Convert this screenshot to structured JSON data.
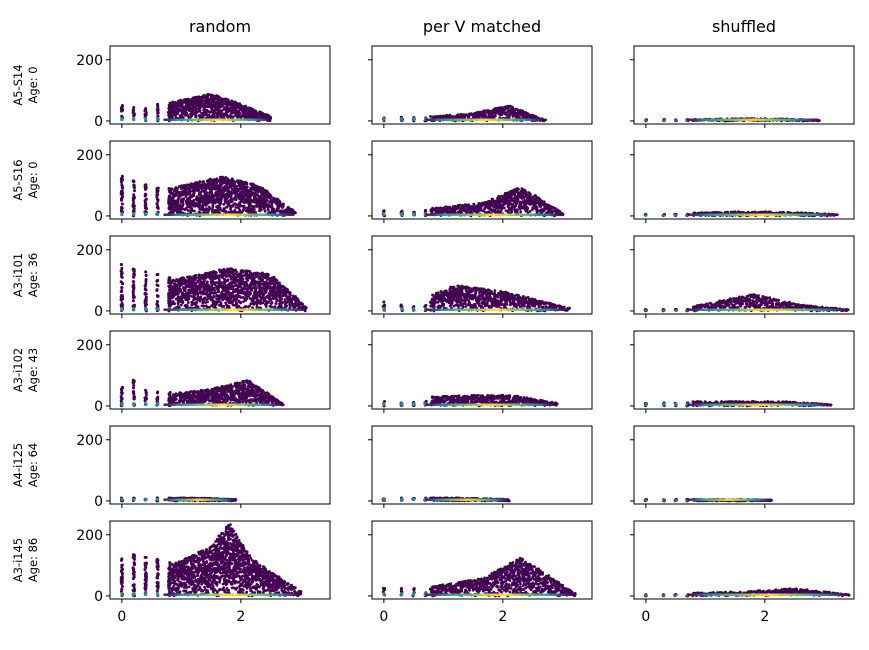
{
  "chart_data": {
    "type": "scatter",
    "layout": "6x3 grid, shared axes",
    "columns": [
      "random",
      "per V matched",
      "shuffled"
    ],
    "rows": [
      {
        "id": "A5-S14",
        "age": "Age: 0"
      },
      {
        "id": "A5-S16",
        "age": "Age: 0"
      },
      {
        "id": "A3-i101",
        "age": "Age: 36"
      },
      {
        "id": "A3-i102",
        "age": "Age: 43"
      },
      {
        "id": "A4-i125",
        "age": "Age: 64"
      },
      {
        "id": "A3-i145",
        "age": "Age: 86"
      }
    ],
    "xlim": [
      -0.2,
      3.5
    ],
    "ylim": [
      -10,
      245
    ],
    "xticks": [
      0,
      2
    ],
    "yticks": [
      0,
      200
    ],
    "colormap": "viridis",
    "grid": false,
    "legend": "none",
    "panel_shapes": [
      [
        {
          "x_stripes": [
            0,
            0.2,
            0.4,
            0.6,
            0.8
          ],
          "stripe_ymax": [
            55,
            45,
            50,
            55,
            60
          ],
          "cloud_xmax": 2.5,
          "envelope": [
            [
              0.8,
              60
            ],
            [
              1.5,
              90
            ],
            [
              2.0,
              55
            ],
            [
              2.5,
              15
            ]
          ]
        },
        {
          "x_stripes": [
            0,
            0.3,
            0.5,
            0.7
          ],
          "stripe_ymax": [
            12,
            12,
            12,
            12
          ],
          "cloud_xmax": 2.7,
          "envelope": [
            [
              0.8,
              15
            ],
            [
              1.5,
              25
            ],
            [
              2.1,
              50
            ],
            [
              2.7,
              5
            ]
          ]
        },
        {
          "x_stripes": [
            0,
            0.3,
            0.5,
            0.7
          ],
          "stripe_ymax": [
            5,
            5,
            5,
            5
          ],
          "cloud_xmax": 2.9,
          "envelope": [
            [
              0.8,
              5
            ],
            [
              1.5,
              8
            ],
            [
              2.2,
              8
            ],
            [
              2.9,
              3
            ]
          ]
        }
      ],
      [
        {
          "x_stripes": [
            0,
            0.2,
            0.4,
            0.6,
            0.8
          ],
          "stripe_ymax": [
            130,
            115,
            105,
            100,
            90
          ],
          "cloud_xmax": 2.9,
          "envelope": [
            [
              0.8,
              90
            ],
            [
              1.7,
              130
            ],
            [
              2.3,
              100
            ],
            [
              2.9,
              15
            ]
          ]
        },
        {
          "x_stripes": [
            0,
            0.3,
            0.5,
            0.7
          ],
          "stripe_ymax": [
            20,
            20,
            20,
            20
          ],
          "cloud_xmax": 3.0,
          "envelope": [
            [
              0.8,
              25
            ],
            [
              1.7,
              45
            ],
            [
              2.3,
              95
            ],
            [
              3.0,
              10
            ]
          ]
        },
        {
          "x_stripes": [
            0,
            0.3,
            0.5,
            0.7
          ],
          "stripe_ymax": [
            5,
            5,
            5,
            5
          ],
          "cloud_xmax": 3.2,
          "envelope": [
            [
              0.8,
              10
            ],
            [
              1.7,
              15
            ],
            [
              2.5,
              12
            ],
            [
              3.2,
              5
            ]
          ]
        }
      ],
      [
        {
          "x_stripes": [
            0,
            0.2,
            0.4,
            0.6,
            0.8
          ],
          "stripe_ymax": [
            155,
            140,
            130,
            120,
            110
          ],
          "cloud_xmax": 3.1,
          "envelope": [
            [
              0.8,
              100
            ],
            [
              1.8,
              140
            ],
            [
              2.5,
              120
            ],
            [
              3.1,
              15
            ]
          ]
        },
        {
          "x_stripes": [
            0,
            0.3,
            0.5,
            0.7
          ],
          "stripe_ymax": [
            30,
            20,
            20,
            20
          ],
          "cloud_xmax": 3.1,
          "envelope": [
            [
              0.8,
              50
            ],
            [
              1.2,
              85
            ],
            [
              2.1,
              60
            ],
            [
              3.1,
              10
            ]
          ]
        },
        {
          "x_stripes": [
            0,
            0.3,
            0.5,
            0.7
          ],
          "stripe_ymax": [
            5,
            5,
            5,
            5
          ],
          "cloud_xmax": 3.4,
          "envelope": [
            [
              0.8,
              15
            ],
            [
              1.8,
              55
            ],
            [
              2.6,
              20
            ],
            [
              3.4,
              5
            ]
          ]
        }
      ],
      [
        {
          "x_stripes": [
            0,
            0.2,
            0.4,
            0.6,
            0.8
          ],
          "stripe_ymax": [
            70,
            90,
            55,
            50,
            45
          ],
          "cloud_xmax": 2.7,
          "envelope": [
            [
              0.8,
              40
            ],
            [
              1.5,
              55
            ],
            [
              2.1,
              85
            ],
            [
              2.7,
              10
            ]
          ]
        },
        {
          "x_stripes": [
            0,
            0.3,
            0.5,
            0.7
          ],
          "stripe_ymax": [
            15,
            15,
            15,
            15
          ],
          "cloud_xmax": 2.9,
          "envelope": [
            [
              0.8,
              30
            ],
            [
              1.5,
              35
            ],
            [
              2.2,
              35
            ],
            [
              2.9,
              10
            ]
          ]
        },
        {
          "x_stripes": [
            0,
            0.3,
            0.5,
            0.7
          ],
          "stripe_ymax": [
            10,
            10,
            10,
            10
          ],
          "cloud_xmax": 3.1,
          "envelope": [
            [
              0.8,
              15
            ],
            [
              1.5,
              15
            ],
            [
              2.3,
              15
            ],
            [
              3.1,
              5
            ]
          ]
        }
      ],
      [
        {
          "x_stripes": [
            0,
            0.2,
            0.4,
            0.6,
            0.8
          ],
          "stripe_ymax": [
            10,
            10,
            10,
            10,
            10
          ],
          "cloud_xmax": 1.9,
          "envelope": [
            [
              0.8,
              10
            ],
            [
              1.2,
              10
            ],
            [
              1.6,
              8
            ],
            [
              1.9,
              5
            ]
          ]
        },
        {
          "x_stripes": [
            0,
            0.3,
            0.5,
            0.7
          ],
          "stripe_ymax": [
            10,
            10,
            10,
            10
          ],
          "cloud_xmax": 2.1,
          "envelope": [
            [
              0.8,
              10
            ],
            [
              1.2,
              10
            ],
            [
              1.7,
              8
            ],
            [
              2.1,
              5
            ]
          ]
        },
        {
          "x_stripes": [
            0,
            0.3,
            0.5,
            0.7
          ],
          "stripe_ymax": [
            5,
            5,
            5,
            5
          ],
          "cloud_xmax": 2.1,
          "envelope": [
            [
              0.8,
              5
            ],
            [
              1.2,
              5
            ],
            [
              1.7,
              5
            ],
            [
              2.1,
              3
            ]
          ]
        }
      ],
      [
        {
          "x_stripes": [
            0,
            0.2,
            0.4,
            0.6,
            0.8
          ],
          "stripe_ymax": [
            125,
            140,
            130,
            120,
            110
          ],
          "cloud_xmax": 3.0,
          "envelope": [
            [
              0.8,
              100
            ],
            [
              1.5,
              160
            ],
            [
              1.8,
              235
            ],
            [
              2.2,
              120
            ],
            [
              3.0,
              15
            ]
          ]
        },
        {
          "x_stripes": [
            0,
            0.3,
            0.5,
            0.7
          ],
          "stripe_ymax": [
            25,
            25,
            25,
            25
          ],
          "cloud_xmax": 3.2,
          "envelope": [
            [
              0.8,
              30
            ],
            [
              1.7,
              60
            ],
            [
              2.3,
              125
            ],
            [
              3.2,
              10
            ]
          ]
        },
        {
          "x_stripes": [
            0,
            0.3,
            0.5,
            0.7
          ],
          "stripe_ymax": [
            5,
            5,
            5,
            5
          ],
          "cloud_xmax": 3.4,
          "envelope": [
            [
              0.8,
              10
            ],
            [
              1.7,
              15
            ],
            [
              2.5,
              25
            ],
            [
              3.4,
              5
            ]
          ]
        }
      ]
    ]
  }
}
